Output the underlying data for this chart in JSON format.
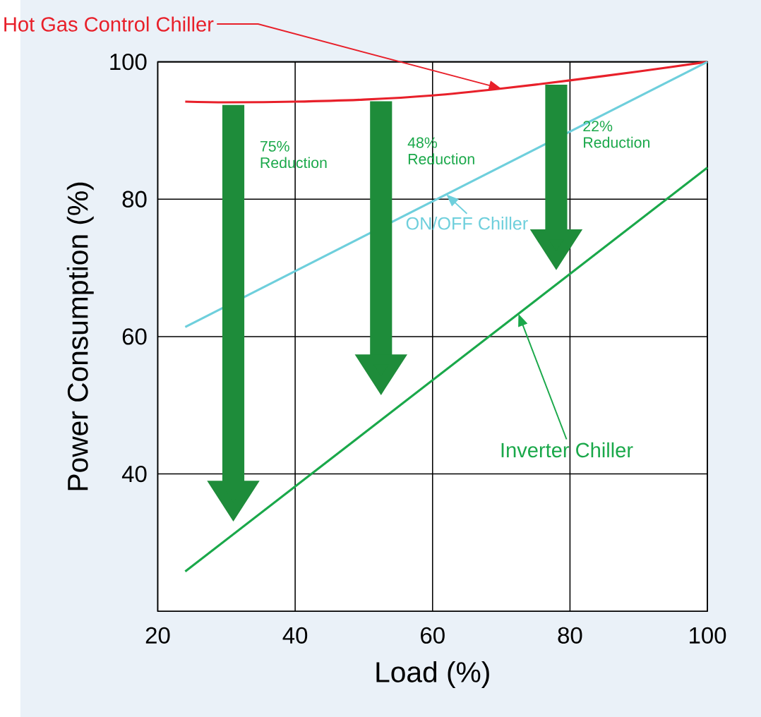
{
  "chart_data": {
    "type": "line",
    "xlabel": "Load (%)",
    "ylabel": "Power Consumption (%)",
    "xlim": [
      20,
      100
    ],
    "ylim": [
      20,
      100
    ],
    "xticks": [
      20,
      40,
      60,
      80,
      100
    ],
    "yticks": [
      {
        "value": 20,
        "label": null
      },
      40,
      60,
      80,
      100
    ],
    "grid": true,
    "series": [
      {
        "name": "Hot Gas Control Chiller",
        "color": "#e8202a",
        "x": [
          24,
          30,
          40,
          50,
          60,
          70,
          80,
          90,
          100
        ],
        "values": [
          94.2,
          94.1,
          94.2,
          94.5,
          95.1,
          96.1,
          97.3,
          98.6,
          100
        ]
      },
      {
        "name": "ON/OFF Chiller",
        "color": "#6ecfdc",
        "x": [
          24,
          100
        ],
        "values": [
          61.4,
          100
        ]
      },
      {
        "name": "Inverter Chiller",
        "color": "#1aa84a",
        "x": [
          24,
          100
        ],
        "values": [
          25.8,
          84.6
        ]
      }
    ],
    "annotations": [
      "75% Reduction",
      "48% Reduction",
      "22% Reduction"
    ]
  }
}
